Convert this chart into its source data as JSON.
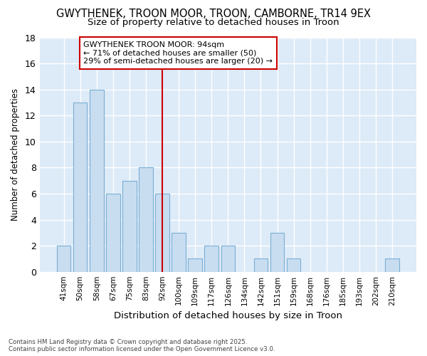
{
  "title_line1": "GWYTHENEK, TROON MOOR, TROON, CAMBORNE, TR14 9EX",
  "title_line2": "Size of property relative to detached houses in Troon",
  "xlabel": "Distribution of detached houses by size in Troon",
  "ylabel": "Number of detached properties",
  "categories": [
    "41sqm",
    "50sqm",
    "58sqm",
    "67sqm",
    "75sqm",
    "83sqm",
    "92sqm",
    "100sqm",
    "109sqm",
    "117sqm",
    "126sqm",
    "134sqm",
    "142sqm",
    "151sqm",
    "159sqm",
    "168sqm",
    "176sqm",
    "185sqm",
    "193sqm",
    "202sqm",
    "210sqm"
  ],
  "values": [
    2,
    13,
    14,
    6,
    7,
    8,
    6,
    3,
    1,
    2,
    2,
    0,
    1,
    3,
    1,
    0,
    0,
    0,
    0,
    0,
    1
  ],
  "bar_color": "#c9ddf0",
  "bar_edge_color": "#7aafd4",
  "plot_bg_color": "#ddeaf7",
  "fig_bg_color": "#ffffff",
  "grid_color": "#ffffff",
  "vline_color": "#cc0000",
  "vline_x_idx": 6,
  "annotation_text": "GWYTHENEK TROON MOOR: 94sqm\n← 71% of detached houses are smaller (50)\n29% of semi-detached houses are larger (20) →",
  "annotation_box_color": "white",
  "annotation_box_edge_color": "#cc0000",
  "ylim": [
    0,
    18
  ],
  "yticks": [
    0,
    2,
    4,
    6,
    8,
    10,
    12,
    14,
    16,
    18
  ],
  "footnote": "Contains HM Land Registry data © Crown copyright and database right 2025.\nContains public sector information licensed under the Open Government Licence v3.0."
}
